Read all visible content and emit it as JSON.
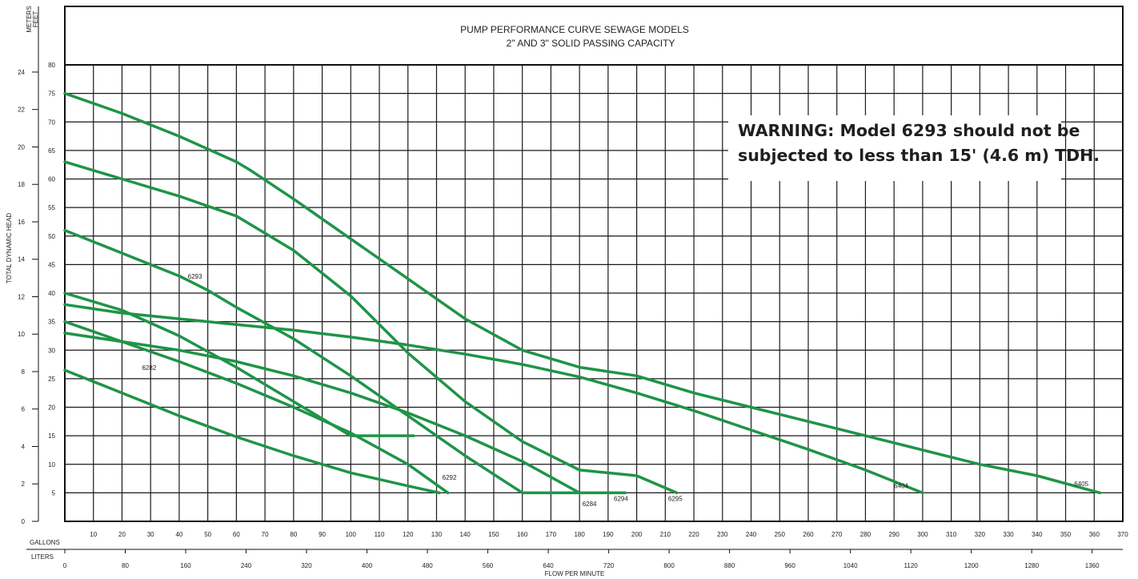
{
  "chart_data": {
    "type": "line",
    "title_line1": "PUMP PERFORMANCE CURVE SEWAGE MODELS",
    "title_line2": "2\" AND 3\" SOLID PASSING CAPACITY",
    "xlabel": "FLOW PER MINUTE",
    "ylabel": "TOTAL DYNAMIC HEAD",
    "x_gallons_label": "GALLONS",
    "x_liters_label": "LITERS",
    "y_meters_label": "METERS",
    "y_feet_label": "FEET",
    "xlim_gallons": [
      0,
      370
    ],
    "ylim_feet": [
      0,
      80
    ],
    "x_gallons_ticks": [
      10,
      20,
      30,
      40,
      50,
      60,
      70,
      80,
      90,
      100,
      110,
      120,
      130,
      140,
      150,
      160,
      170,
      180,
      190,
      200,
      210,
      220,
      230,
      240,
      250,
      260,
      270,
      280,
      290,
      300,
      310,
      320,
      330,
      340,
      350,
      360,
      370
    ],
    "x_liters_ticks": [
      0,
      80,
      160,
      240,
      320,
      400,
      480,
      560,
      640,
      720,
      800,
      880,
      960,
      1040,
      1120,
      1200,
      1280,
      1360
    ],
    "y_feet_ticks": [
      5,
      10,
      15,
      20,
      25,
      30,
      35,
      40,
      45,
      50,
      55,
      60,
      65,
      70,
      75,
      80
    ],
    "y_meters_ticks": [
      0,
      2,
      4,
      6,
      8,
      10,
      12,
      14,
      16,
      18,
      20,
      22,
      24
    ],
    "grid": true,
    "line_color": "#1f9447",
    "series": [
      {
        "name": "6282",
        "label_at": [
          27,
          26.5
        ],
        "x": [
          0,
          20,
          40,
          60,
          80,
          100,
          120,
          131
        ],
        "y": [
          26.5,
          22.5,
          18.5,
          14.8,
          11.5,
          8.5,
          6.2,
          5
        ]
      },
      {
        "name": "6292",
        "label_at": [
          132,
          7.3
        ],
        "x": [
          0,
          20,
          40,
          60,
          80,
          100,
          120,
          134
        ],
        "y": [
          35,
          31.5,
          28,
          24.2,
          20,
          15.5,
          10,
          5
        ]
      },
      {
        "name": "6293",
        "label_at": [
          43,
          42.5
        ],
        "x": [
          0,
          20,
          40,
          60,
          80,
          100,
          122
        ],
        "y": [
          40,
          37,
          32.5,
          27,
          21,
          15,
          15
        ]
      },
      {
        "name": "6284",
        "label_at": [
          181,
          2.7
        ],
        "x": [
          0,
          20,
          40,
          60,
          80,
          100,
          120,
          140,
          160,
          180
        ],
        "y": [
          33,
          31.5,
          30,
          28,
          25.5,
          22.5,
          19,
          15,
          10.5,
          5
        ]
      },
      {
        "name": "6294",
        "label_at": [
          192,
          3.6
        ],
        "x": [
          0,
          20,
          40,
          50,
          60,
          80,
          100,
          120,
          140,
          160,
          175,
          196
        ],
        "y": [
          51,
          47,
          43,
          40.5,
          37.5,
          32,
          25.5,
          18.5,
          11.5,
          5,
          5,
          5
        ]
      },
      {
        "name": "6295",
        "label_at": [
          211,
          3.6
        ],
        "x": [
          0,
          20,
          40,
          60,
          80,
          90,
          100,
          120,
          140,
          160,
          180,
          200,
          214
        ],
        "y": [
          63,
          60,
          57,
          53.5,
          47.5,
          43.5,
          39.5,
          29.5,
          21,
          14,
          9,
          8,
          5
        ]
      },
      {
        "name": "6404",
        "label_at": [
          290,
          5.8
        ],
        "x": [
          0,
          20,
          40,
          60,
          80,
          100,
          120,
          140,
          160,
          180,
          200,
          220,
          240,
          260,
          280,
          300
        ],
        "y": [
          38,
          36.5,
          35.5,
          34.5,
          33.5,
          32.3,
          30.9,
          29.3,
          27.5,
          25.3,
          22.5,
          19.4,
          16,
          12.6,
          9,
          5
        ]
      },
      {
        "name": "6405",
        "label_at": [
          353,
          6.2
        ],
        "x": [
          0,
          20,
          40,
          60,
          65,
          80,
          100,
          120,
          140,
          160,
          180,
          200,
          220,
          240,
          260,
          280,
          300,
          320,
          340,
          362
        ],
        "y": [
          75,
          71.5,
          67.5,
          63,
          61.5,
          56.5,
          49.5,
          42.5,
          35.5,
          30,
          27,
          25.5,
          22.5,
          20,
          17.5,
          15,
          12.5,
          10,
          8,
          5
        ]
      }
    ]
  },
  "warning": {
    "line1": "WARNING:  Model 6293 should not be",
    "line2": "subjected to less than 15' (4.6 m) TDH."
  }
}
